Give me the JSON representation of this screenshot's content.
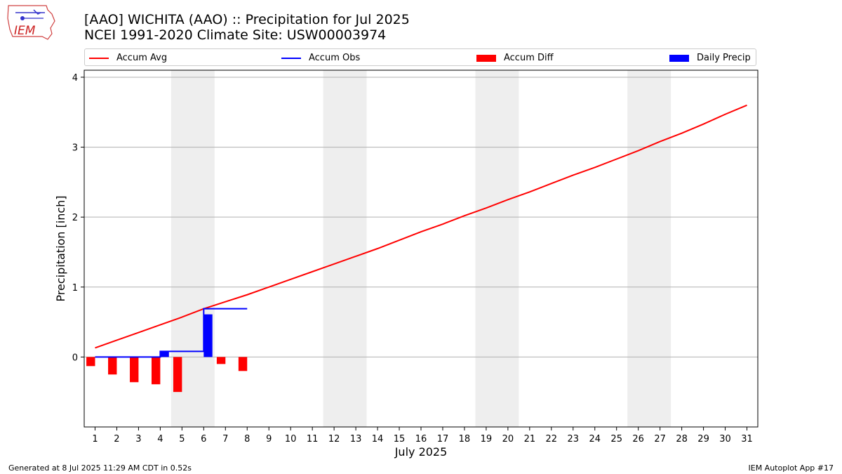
{
  "header": {
    "title_line1": "[AAO] WICHITA (AAO) :: Precipitation for Jul 2025",
    "title_line2": "NCEI 1991-2020 Climate Site: USW00003974"
  },
  "logo": {
    "text": "IEM"
  },
  "footer": {
    "left": "Generated at 8 Jul 2025 11:29 AM CDT in 0.52s",
    "right": "IEM Autoplot App #17"
  },
  "colors": {
    "avg": "#ff0000",
    "obs": "#0000ff",
    "diff": "#ff0000",
    "daily": "#0000ff",
    "weekend": "#eeeeee"
  },
  "chart_data": {
    "type": "line",
    "xlabel": "July 2025",
    "ylabel": "Precipitation [inch]",
    "xlim": [
      0.5,
      31.5
    ],
    "ylim": [
      -1.0,
      4.1
    ],
    "yticks": [
      0,
      1,
      2,
      3,
      4
    ],
    "grid": "y",
    "legend": [
      "Accum Avg",
      "Accum Obs",
      "Accum Diff",
      "Daily Precip"
    ],
    "legend_placement": "top",
    "x": [
      1,
      2,
      3,
      4,
      5,
      6,
      7,
      8,
      9,
      10,
      11,
      12,
      13,
      14,
      15,
      16,
      17,
      18,
      19,
      20,
      21,
      22,
      23,
      24,
      25,
      26,
      27,
      28,
      29,
      30,
      31
    ],
    "weekend_spans": [
      [
        4.5,
        6.5
      ],
      [
        11.5,
        13.5
      ],
      [
        18.5,
        20.5
      ],
      [
        25.5,
        27.5
      ]
    ],
    "series": [
      {
        "name": "Accum Avg",
        "type": "line",
        "values": [
          0.13,
          0.24,
          0.35,
          0.46,
          0.57,
          0.69,
          0.79,
          0.89,
          1.0,
          1.11,
          1.22,
          1.33,
          1.44,
          1.55,
          1.67,
          1.79,
          1.9,
          2.02,
          2.13,
          2.25,
          2.36,
          2.48,
          2.6,
          2.71,
          2.83,
          2.95,
          3.08,
          3.2,
          3.33,
          3.47,
          3.6
        ]
      },
      {
        "name": "Accum Obs",
        "type": "line",
        "x": [
          1,
          2,
          3,
          4,
          5,
          6,
          7,
          8
        ],
        "values": [
          0.0,
          0.0,
          0.0,
          0.08,
          0.08,
          0.69,
          0.69,
          0.69
        ]
      },
      {
        "name": "Accum Diff",
        "type": "bar",
        "x": [
          1,
          2,
          3,
          4,
          5,
          6,
          7,
          8
        ],
        "values": [
          -0.13,
          -0.25,
          -0.36,
          -0.39,
          -0.5,
          0.0,
          -0.1,
          -0.2
        ]
      },
      {
        "name": "Daily Precip",
        "type": "bar",
        "x": [
          1,
          2,
          3,
          4,
          5,
          6,
          7,
          8
        ],
        "values": [
          0.0,
          0.0,
          0.0,
          0.08,
          0.0,
          0.61,
          0.0,
          0.0
        ]
      }
    ]
  }
}
